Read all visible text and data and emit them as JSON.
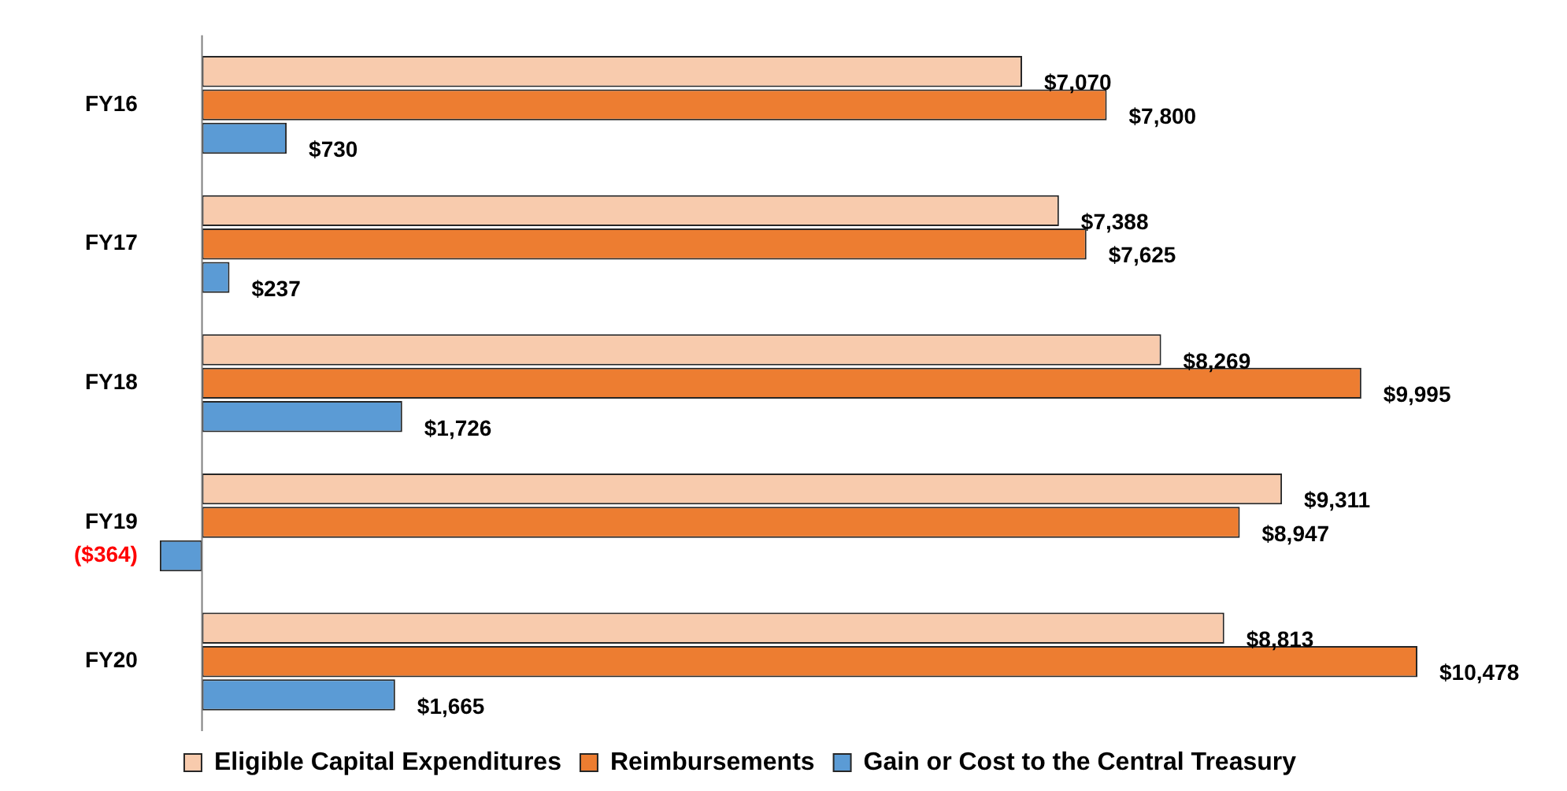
{
  "chart_data": {
    "type": "bar",
    "orientation": "horizontal",
    "categories": [
      "FY16",
      "FY17",
      "FY18",
      "FY19",
      "FY20"
    ],
    "series": [
      {
        "name": "Eligible Capital Expenditures",
        "color": "#f8cbad",
        "values": [
          7070,
          7388,
          8269,
          9311,
          8813
        ],
        "value_labels": [
          "$7,070",
          "$7,388",
          "$8,269",
          "$9,311",
          "$8,813"
        ]
      },
      {
        "name": "Reimbursements",
        "color": "#ed7d31",
        "values": [
          7800,
          7625,
          9995,
          8947,
          10478
        ],
        "value_labels": [
          "$7,800",
          "$7,625",
          "$9,995",
          "$8,947",
          "$10,478"
        ]
      },
      {
        "name": "Gain or Cost to the Central Treasury",
        "color": "#5b9bd5",
        "values": [
          730,
          237,
          1726,
          -364,
          1665
        ],
        "value_labels": [
          "$730",
          "$237",
          "$1,726",
          "($364)",
          "$1,665"
        ]
      }
    ],
    "legend": "bottom",
    "grid": false,
    "tick_labels": "y"
  }
}
